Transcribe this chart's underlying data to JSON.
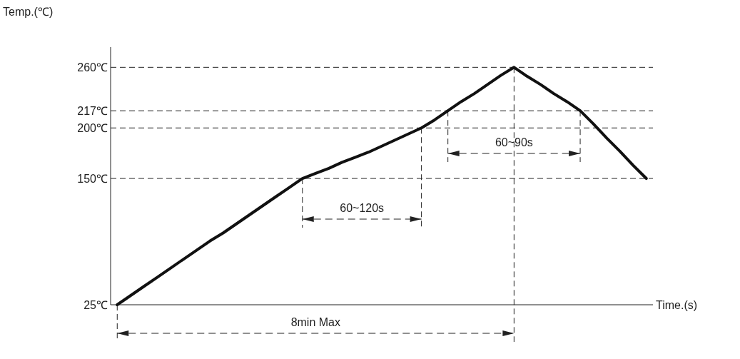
{
  "chart_data": {
    "type": "line",
    "ylabel": "Temp.(℃)",
    "categories": [
      null,
      null,
      null,
      null,
      null,
      null,
      null,
      null,
      null,
      null,
      null,
      null,
      null,
      null,
      null,
      null,
      null,
      null,
      null,
      null,
      null,
      null,
      null,
      null,
      null,
      null,
      null,
      null,
      null,
      null,
      null,
      null,
      null,
      null,
      null,
      null,
      null,
      null,
      null,
      null,
      null
    ],
    "series": [
      {
        "color": "#111111",
        "values": [
          25,
          34,
          43,
          52,
          61,
          70,
          79,
          88,
          96,
          105,
          114,
          123,
          132,
          141,
          150,
          155,
          160,
          166,
          171,
          176,
          182,
          188,
          194,
          200,
          208,
          217,
          226,
          234,
          243,
          252,
          260,
          251,
          243,
          234,
          226,
          217,
          204,
          190,
          177,
          163,
          150
        ]
      }
    ],
    "yticks": [
      {
        "value": 25,
        "label": "25℃"
      },
      {
        "value": 150,
        "label": "150℃"
      },
      {
        "value": 200,
        "label": "200℃"
      },
      {
        "value": 217,
        "label": "217℃"
      },
      {
        "value": 260,
        "label": "260℃"
      }
    ],
    "ylim": [
      25,
      280
    ],
    "tick_labels": "y",
    "marker": "none",
    "line_style": "solid",
    "ref_lines": [
      {
        "axis": "y",
        "value": 150,
        "line_style": "dashed"
      },
      {
        "axis": "y",
        "value": 200,
        "line_style": "dashed"
      },
      {
        "axis": "y",
        "value": 217,
        "line_style": "dashed"
      },
      {
        "axis": "y",
        "value": 260,
        "line_style": "dashed"
      }
    ],
    "annotations": [
      "60~120s",
      "60~90s",
      "8min Max",
      "Time.(s)"
    ]
  }
}
